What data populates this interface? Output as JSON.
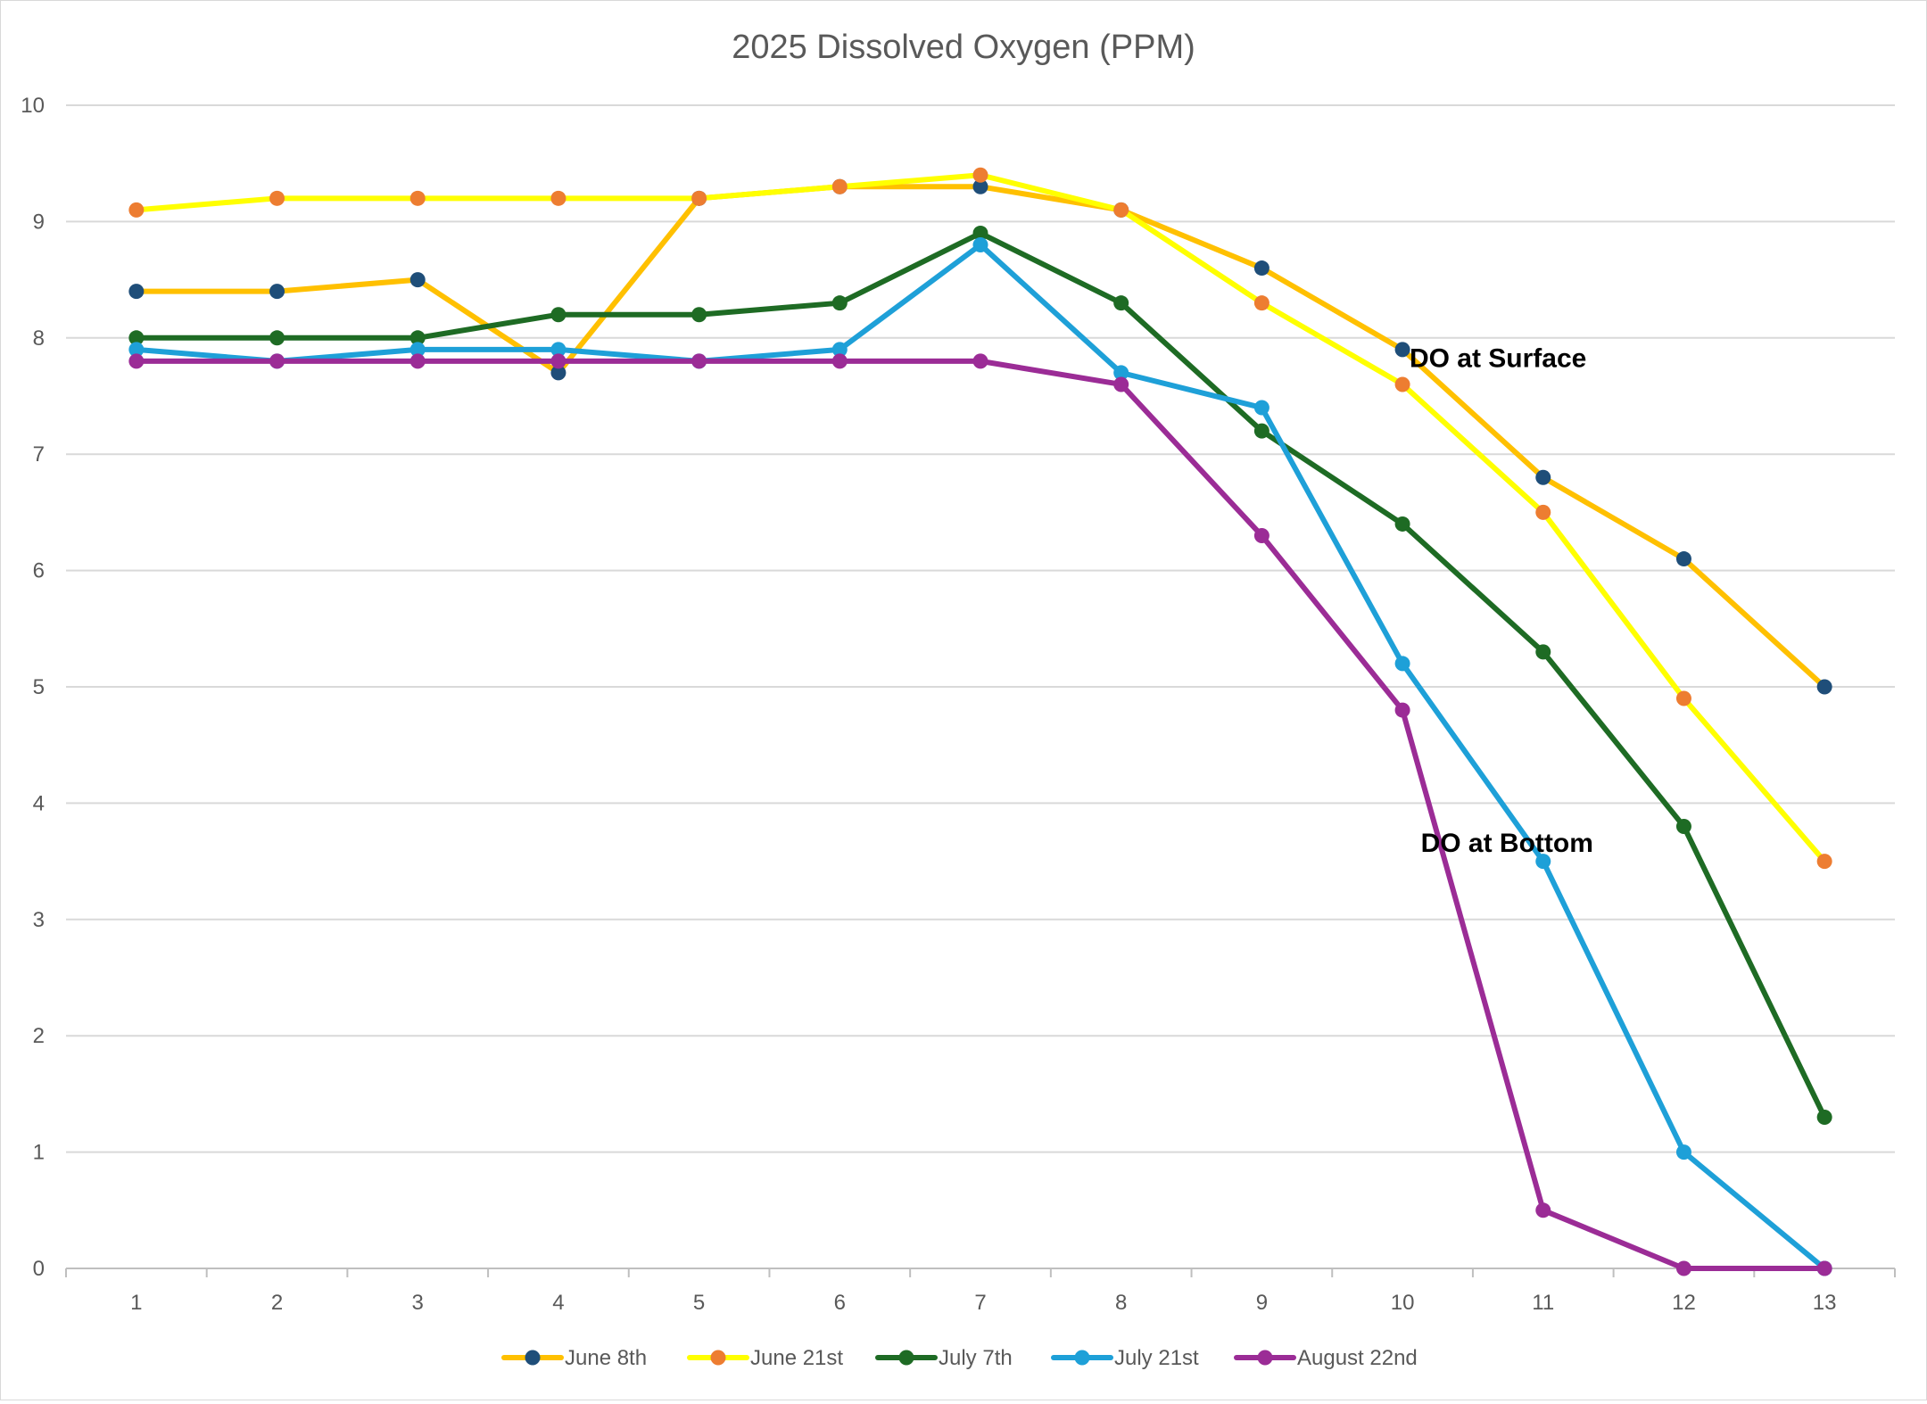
{
  "chart_data": {
    "type": "line",
    "title": "2025 Dissolved Oxygen (PPM)",
    "xlabel": "",
    "ylabel": "",
    "x": [
      1,
      2,
      3,
      4,
      5,
      6,
      7,
      8,
      9,
      10,
      11,
      12,
      13
    ],
    "ylim": [
      0,
      10
    ],
    "yticks": [
      0,
      1,
      2,
      3,
      4,
      5,
      6,
      7,
      8,
      9,
      10
    ],
    "grid": true,
    "legend_position": "bottom",
    "series": [
      {
        "name": "June 8th",
        "line_color": "#FFC000",
        "marker_color": "#1F4E79",
        "values": [
          8.4,
          8.4,
          8.5,
          7.7,
          9.2,
          9.3,
          9.3,
          9.1,
          8.6,
          7.9,
          6.8,
          6.1,
          5.0
        ]
      },
      {
        "name": "June 21st",
        "line_color": "#FFFF00",
        "marker_color": "#ED7D31",
        "values": [
          9.1,
          9.2,
          9.2,
          9.2,
          9.2,
          9.3,
          9.4,
          9.1,
          8.3,
          7.6,
          6.5,
          4.9,
          3.5
        ]
      },
      {
        "name": "July 7th",
        "line_color": "#1E6B24",
        "marker_color": "#1E6B24",
        "values": [
          8.0,
          8.0,
          8.0,
          8.2,
          8.2,
          8.3,
          8.9,
          8.3,
          7.2,
          6.4,
          5.3,
          3.8,
          1.3
        ]
      },
      {
        "name": "July 21st",
        "line_color": "#1EA0D8",
        "marker_color": "#1EA0D8",
        "values": [
          7.9,
          7.8,
          7.9,
          7.9,
          7.8,
          7.9,
          8.8,
          7.7,
          7.4,
          5.2,
          3.5,
          1.0,
          0.0
        ]
      },
      {
        "name": "August 22nd",
        "line_color": "#9B2C96",
        "marker_color": "#9B2C96",
        "values": [
          7.8,
          7.8,
          7.8,
          7.8,
          7.8,
          7.8,
          7.8,
          7.6,
          6.3,
          4.8,
          0.5,
          0.0,
          0.0
        ]
      }
    ],
    "annotations": [
      {
        "text": "DO at Surface",
        "x": 10.05,
        "y": 7.75
      },
      {
        "text": "DO at Bottom",
        "x": 10.13,
        "y": 3.58
      }
    ]
  }
}
